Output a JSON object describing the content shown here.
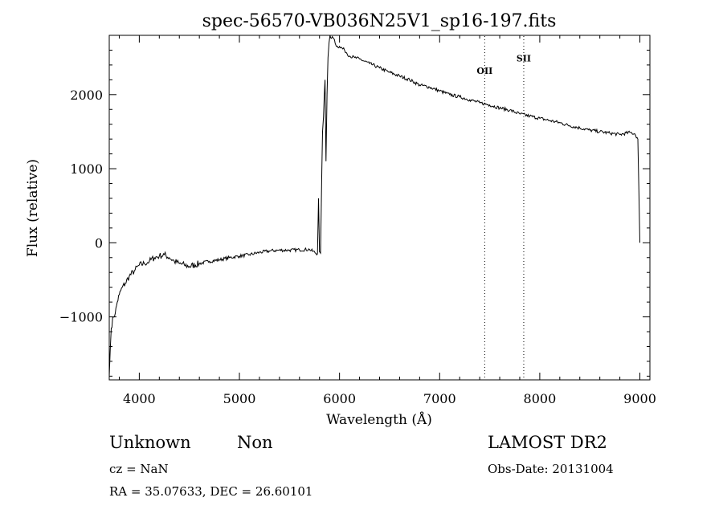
{
  "chart_data": {
    "type": "line",
    "title": "spec-56570-VB036N25V1_sp16-197.fits",
    "xlabel": "Wavelength (Å)",
    "ylabel": "Flux (relative)",
    "xlim": [
      3700,
      9100
    ],
    "ylim": [
      -1850,
      2800
    ],
    "xticks": [
      4000,
      5000,
      6000,
      7000,
      8000,
      9000
    ],
    "yticks": [
      -1000,
      0,
      1000,
      2000
    ],
    "ytick_labels": [
      "−1000",
      "0",
      "1000",
      "2000"
    ],
    "grid": false,
    "series": [
      {
        "x": [
          3700,
          3710,
          3720,
          3740,
          3760,
          3780,
          3800,
          3830,
          3860,
          3900,
          3950,
          4000,
          4050,
          4100,
          4150,
          4200,
          4250,
          4300,
          4350,
          4400,
          4450,
          4500,
          4600,
          4700,
          4800,
          4900,
          5000,
          5100,
          5200,
          5300,
          5400,
          5500,
          5600,
          5700,
          5780,
          5790,
          5800,
          5810,
          5830,
          5840,
          5855,
          5865,
          5875,
          5885,
          5895,
          5905,
          5920,
          5935,
          5950,
          5970,
          6000,
          6050,
          6100,
          6150,
          6200,
          6300,
          6400,
          6500,
          6600,
          6700,
          6800,
          6900,
          7000,
          7100,
          7200,
          7300,
          7400,
          7500,
          7600,
          7700,
          7800,
          7900,
          8000,
          8100,
          8200,
          8300,
          8400,
          8500,
          8600,
          8700,
          8800,
          8900,
          8950,
          8980,
          8990,
          9000
        ],
        "values": [
          -1800,
          -1450,
          -1150,
          -1000,
          -950,
          -800,
          -700,
          -600,
          -550,
          -450,
          -380,
          -300,
          -280,
          -250,
          -200,
          -180,
          -160,
          -200,
          -250,
          -280,
          -300,
          -320,
          -280,
          -250,
          -230,
          -200,
          -180,
          -160,
          -130,
          -110,
          -100,
          -100,
          -95,
          -90,
          -150,
          600,
          -120,
          -140,
          1500,
          1700,
          2200,
          1100,
          2000,
          2500,
          2700,
          2800,
          2760,
          2770,
          2740,
          2650,
          2650,
          2600,
          2520,
          2500,
          2480,
          2420,
          2360,
          2300,
          2250,
          2200,
          2130,
          2100,
          2050,
          2000,
          1970,
          1930,
          1890,
          1860,
          1820,
          1790,
          1740,
          1710,
          1680,
          1650,
          1620,
          1580,
          1550,
          1520,
          1500,
          1480,
          1460,
          1490,
          1470,
          1400,
          700,
          0
        ]
      }
    ],
    "spectral_lines": [
      {
        "label": "OII",
        "x": 7450,
        "label_y": 2280
      },
      {
        "label": "SII",
        "x": 7840,
        "label_y": 2450
      }
    ]
  },
  "footer": {
    "object_class": "Unknown",
    "subclass": "Non",
    "survey": "LAMOST DR2",
    "redshift": "cz = NaN",
    "obs_date": "Obs-Date: 20131004",
    "coords": "RA =  35.07633, DEC =  26.60101"
  }
}
